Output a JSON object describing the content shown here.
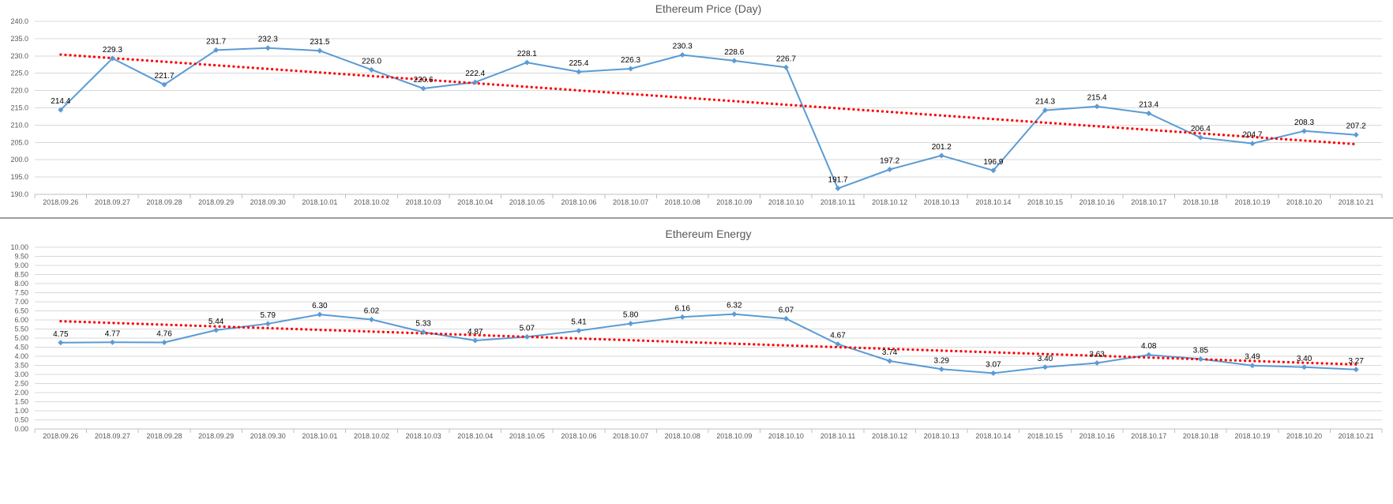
{
  "chart_data": [
    {
      "type": "line",
      "title": "Ethereum Price (Day)",
      "xlabel": "",
      "ylabel": "",
      "categories": [
        "2018.09.26",
        "2018.09.27",
        "2018.09.28",
        "2018.09.29",
        "2018.09.30",
        "2018.10.01",
        "2018.10.02",
        "2018.10.03",
        "2018.10.04",
        "2018.10.05",
        "2018.10.06",
        "2018.10.07",
        "2018.10.08",
        "2018.10.09",
        "2018.10.10",
        "2018.10.11",
        "2018.10.12",
        "2018.10.13",
        "2018.10.14",
        "2018.10.15",
        "2018.10.16",
        "2018.10.17",
        "2018.10.18",
        "2018.10.19",
        "2018.10.20",
        "2018.10.21"
      ],
      "values": [
        214.4,
        229.3,
        221.7,
        231.7,
        232.3,
        231.5,
        226.0,
        220.6,
        222.4,
        228.1,
        225.4,
        226.3,
        230.3,
        228.6,
        226.7,
        191.7,
        197.2,
        201.2,
        196.9,
        214.3,
        215.4,
        213.4,
        206.4,
        204.7,
        208.3,
        207.2
      ],
      "data_labels": [
        "214.4",
        "229.3",
        "221.7",
        "231.7",
        "232.3",
        "231.5",
        "226.0",
        "220.6",
        "222.4",
        "228.1",
        "225.4",
        "226.3",
        "230.3",
        "228.6",
        "226.7",
        "191.7",
        "197.2",
        "201.2",
        "196.9",
        "214.3",
        "215.4",
        "213.4",
        "206.4",
        "204.7",
        "208.3",
        "207.2"
      ],
      "trendline": {
        "type": "linear",
        "start": 230.4,
        "end": 204.5,
        "color": "#ff0000",
        "style": "dotted"
      },
      "ylim": [
        190,
        240
      ],
      "yticks": [
        "190.0",
        "195.0",
        "200.0",
        "205.0",
        "210.0",
        "215.0",
        "220.0",
        "225.0",
        "230.0",
        "235.0",
        "240.0"
      ],
      "grid": true,
      "series_color": "#5b9bd5"
    },
    {
      "type": "line",
      "title": "Ethereum Energy",
      "xlabel": "",
      "ylabel": "",
      "categories": [
        "2018.09.26",
        "2018.09.27",
        "2018.09.28",
        "2018.09.29",
        "2018.09.30",
        "2018.10.01",
        "2018.10.02",
        "2018.10.03",
        "2018.10.04",
        "2018.10.05",
        "2018.10.06",
        "2018.10.07",
        "2018.10.08",
        "2018.10.09",
        "2018.10.10",
        "2018.10.11",
        "2018.10.12",
        "2018.10.13",
        "2018.10.14",
        "2018.10.15",
        "2018.10.16",
        "2018.10.17",
        "2018.10.18",
        "2018.10.19",
        "2018.10.20",
        "2018.10.21"
      ],
      "values": [
        4.75,
        4.77,
        4.76,
        5.44,
        5.79,
        6.3,
        6.02,
        5.33,
        4.87,
        5.07,
        5.41,
        5.8,
        6.16,
        6.32,
        6.07,
        4.67,
        3.74,
        3.29,
        3.07,
        3.4,
        3.63,
        4.08,
        3.85,
        3.49,
        3.4,
        3.27
      ],
      "data_labels": [
        "4.75",
        "4.77",
        "4.76",
        "5.44",
        "5.79",
        "6.30",
        "6.02",
        "5.33",
        "4.87",
        "5.07",
        "5.41",
        "5.80",
        "6.16",
        "6.32",
        "6.07",
        "4.67",
        "3.74",
        "3.29",
        "3.07",
        "3.40",
        "3.63",
        "4.08",
        "3.85",
        "3.49",
        "3.40",
        "3.27"
      ],
      "trendline": {
        "type": "linear",
        "start": 5.93,
        "end": 3.55,
        "color": "#ff0000",
        "style": "dotted"
      },
      "ylim": [
        0,
        10
      ],
      "yticks": [
        "0.00",
        "0.50",
        "1.00",
        "1.50",
        "2.00",
        "2.50",
        "3.00",
        "3.50",
        "4.00",
        "4.50",
        "5.00",
        "5.50",
        "6.00",
        "6.50",
        "7.00",
        "7.50",
        "8.00",
        "8.50",
        "9.00",
        "9.50",
        "10.00"
      ],
      "grid": true,
      "series_color": "#5b9bd5"
    }
  ]
}
